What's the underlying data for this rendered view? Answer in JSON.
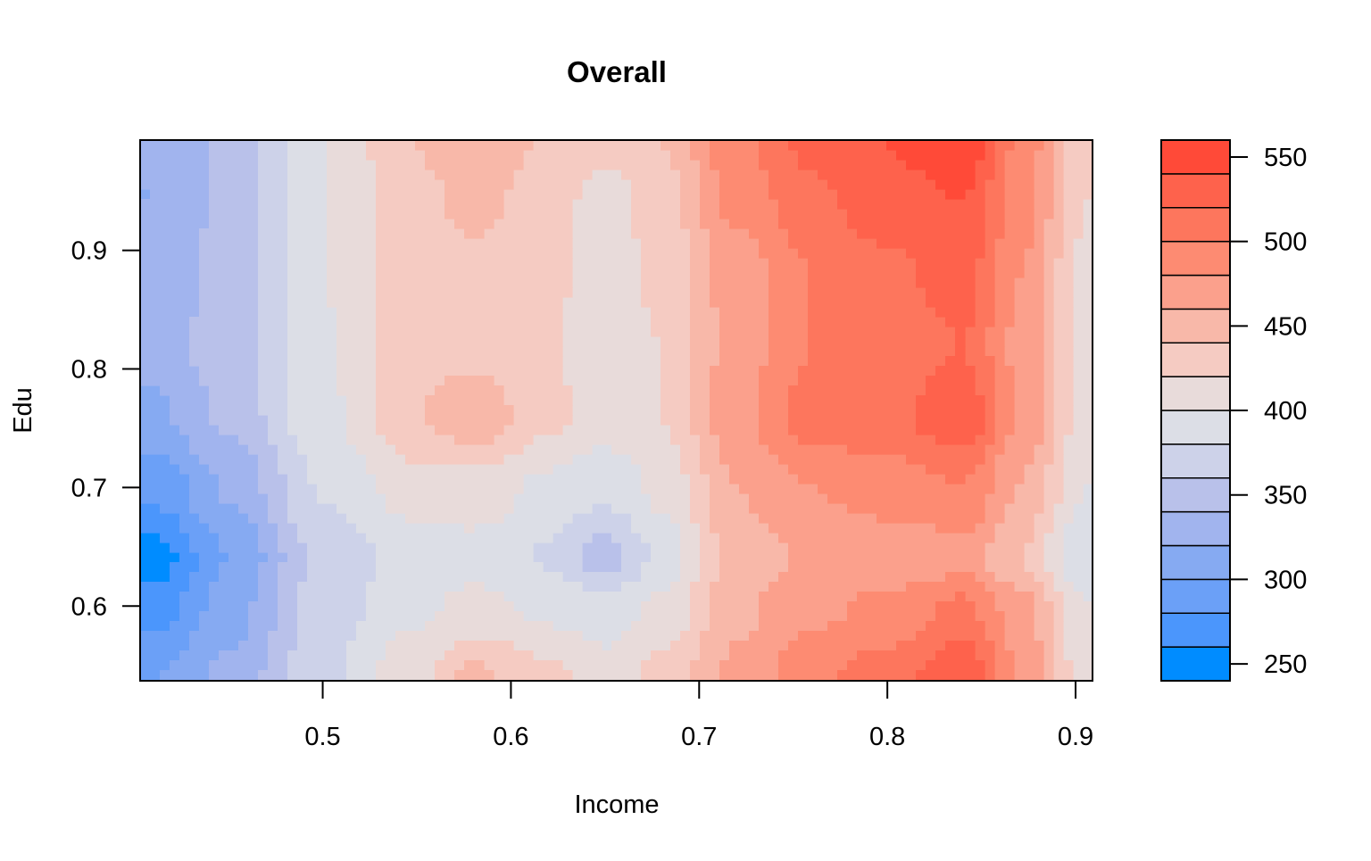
{
  "chart_data": {
    "type": "heatmap",
    "subtype": "filled-contour",
    "title": "Overall",
    "xlabel": "Income",
    "ylabel": "Edu",
    "x_ticks": [
      0.5,
      0.6,
      0.7,
      0.8,
      0.9
    ],
    "y_ticks": [
      0.6,
      0.7,
      0.8,
      0.9
    ],
    "xlim": [
      0.403,
      0.909
    ],
    "ylim": [
      0.537,
      0.993
    ],
    "legend": {
      "position": "right",
      "levels": [
        240,
        260,
        280,
        300,
        320,
        340,
        360,
        380,
        400,
        420,
        440,
        460,
        480,
        500,
        520,
        540,
        560
      ],
      "tick_values": [
        250,
        300,
        350,
        400,
        450,
        500,
        550
      ],
      "colors": [
        "#008cff",
        "#4b96fc",
        "#6ba0f7",
        "#86aaf2",
        "#a1b4ee",
        "#b9c1ea",
        "#cdd2e9",
        "#dcdee6",
        "#e8dbda",
        "#f5cbc2",
        "#f8b8a9",
        "#fba08c",
        "#fd8b72",
        "#fd765d",
        "#fe624c",
        "#ff4a38"
      ]
    },
    "grid": false,
    "approx_values": {
      "x": [
        0.41,
        0.45,
        0.5,
        0.55,
        0.58,
        0.62,
        0.65,
        0.68,
        0.72,
        0.76,
        0.8,
        0.84,
        0.87,
        0.905
      ],
      "y": [
        0.54,
        0.6,
        0.64,
        0.7,
        0.76,
        0.82,
        0.88,
        0.94,
        0.99
      ],
      "z": [
        [
          300,
          325,
          375,
          415,
          445,
          425,
          410,
          425,
          465,
          495,
          510,
          535,
          480,
          410
        ],
        [
          270,
          310,
          370,
          395,
          405,
          395,
          385,
          405,
          455,
          475,
          485,
          505,
          470,
          400
        ],
        [
          250,
          300,
          365,
          390,
          392,
          378,
          350,
          385,
          450,
          462,
          465,
          470,
          440,
          380
        ],
        [
          285,
          322,
          382,
          410,
          412,
          395,
          385,
          405,
          460,
          480,
          490,
          500,
          460,
          400
        ],
        [
          315,
          345,
          395,
          440,
          455,
          425,
          410,
          420,
          475,
          510,
          515,
          535,
          480,
          410
        ],
        [
          330,
          350,
          398,
          432,
          432,
          422,
          405,
          420,
          470,
          500,
          505,
          520,
          475,
          410
        ],
        [
          325,
          348,
          400,
          432,
          435,
          425,
          410,
          425,
          470,
          500,
          515,
          530,
          480,
          415
        ],
        [
          320,
          345,
          400,
          435,
          445,
          430,
          410,
          430,
          485,
          515,
          530,
          540,
          490,
          420
        ],
        [
          320,
          345,
          400,
          440,
          452,
          438,
          425,
          440,
          495,
          525,
          540,
          555,
          495,
          425
        ]
      ]
    }
  }
}
